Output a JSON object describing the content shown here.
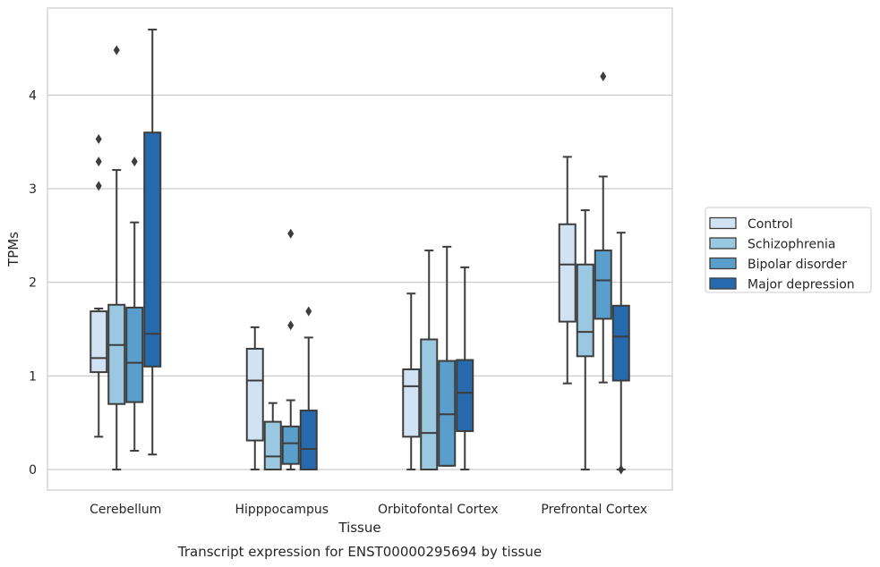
{
  "chart_data": {
    "type": "box",
    "title": "",
    "caption": "Transcript expression for ENST00000295694 by tissue",
    "xlabel": "Tissue",
    "ylabel": "TPMs",
    "ylim": [
      -0.22,
      4.93
    ],
    "yticks": [
      0,
      1,
      2,
      3,
      4
    ],
    "grid": true,
    "legend_position": "right",
    "categories": [
      "Cerebellum",
      "Hipppocampus",
      "Orbitofontal Cortex",
      "Prefrontal Cortex"
    ],
    "series": [
      {
        "name": "Control",
        "color": "#d1e2f2",
        "boxes": [
          {
            "whislo": 0.35,
            "q1": 1.04,
            "med": 1.19,
            "q3": 1.69,
            "whishi": 1.72,
            "fliers": [
              3.03,
              3.29,
              3.53
            ]
          },
          {
            "whislo": 0.0,
            "q1": 0.31,
            "med": 0.95,
            "q3": 1.29,
            "whishi": 1.52,
            "fliers": []
          },
          {
            "whislo": 0.0,
            "q1": 0.35,
            "med": 0.89,
            "q3": 1.07,
            "whishi": 1.88,
            "fliers": []
          },
          {
            "whislo": 0.92,
            "q1": 1.58,
            "med": 2.19,
            "q3": 2.62,
            "whishi": 3.34,
            "fliers": []
          }
        ]
      },
      {
        "name": "Schizophrenia",
        "color": "#9ac8e0",
        "boxes": [
          {
            "whislo": 0.0,
            "q1": 0.7,
            "med": 1.33,
            "q3": 1.76,
            "whishi": 3.2,
            "fliers": [
              4.48
            ]
          },
          {
            "whislo": 0.0,
            "q1": 0.0,
            "med": 0.14,
            "q3": 0.51,
            "whishi": 0.71,
            "fliers": []
          },
          {
            "whislo": 0.0,
            "q1": 0.0,
            "med": 0.39,
            "q3": 1.39,
            "whishi": 2.34,
            "fliers": []
          },
          {
            "whislo": 0.0,
            "q1": 1.21,
            "med": 1.47,
            "q3": 2.19,
            "whishi": 2.77,
            "fliers": []
          }
        ]
      },
      {
        "name": "Bipolar disorder",
        "color": "#5a9ecb",
        "boxes": [
          {
            "whislo": 0.2,
            "q1": 0.72,
            "med": 1.14,
            "q3": 1.73,
            "whishi": 2.64,
            "fliers": [
              3.29
            ]
          },
          {
            "whislo": 0.0,
            "q1": 0.06,
            "med": 0.28,
            "q3": 0.46,
            "whishi": 0.74,
            "fliers": [
              1.54,
              2.52
            ]
          },
          {
            "whislo": 0.04,
            "q1": 0.04,
            "med": 0.59,
            "q3": 1.16,
            "whishi": 2.38,
            "fliers": []
          },
          {
            "whislo": 0.93,
            "q1": 1.61,
            "med": 2.02,
            "q3": 2.34,
            "whishi": 3.13,
            "fliers": [
              4.2
            ]
          }
        ]
      },
      {
        "name": "Major depression",
        "color": "#2669ad",
        "boxes": [
          {
            "whislo": 0.16,
            "q1": 1.1,
            "med": 1.45,
            "q3": 3.6,
            "whishi": 4.7,
            "fliers": []
          },
          {
            "whislo": 0.0,
            "q1": 0.0,
            "med": 0.22,
            "q3": 0.63,
            "whishi": 1.41,
            "fliers": [
              1.69
            ]
          },
          {
            "whislo": 0.0,
            "q1": 0.41,
            "med": 0.82,
            "q3": 1.17,
            "whishi": 2.16,
            "fliers": []
          },
          {
            "whislo": 0.0,
            "q1": 0.95,
            "med": 1.42,
            "q3": 1.75,
            "whishi": 2.53,
            "fliers": [
              0.0
            ]
          }
        ]
      }
    ]
  }
}
